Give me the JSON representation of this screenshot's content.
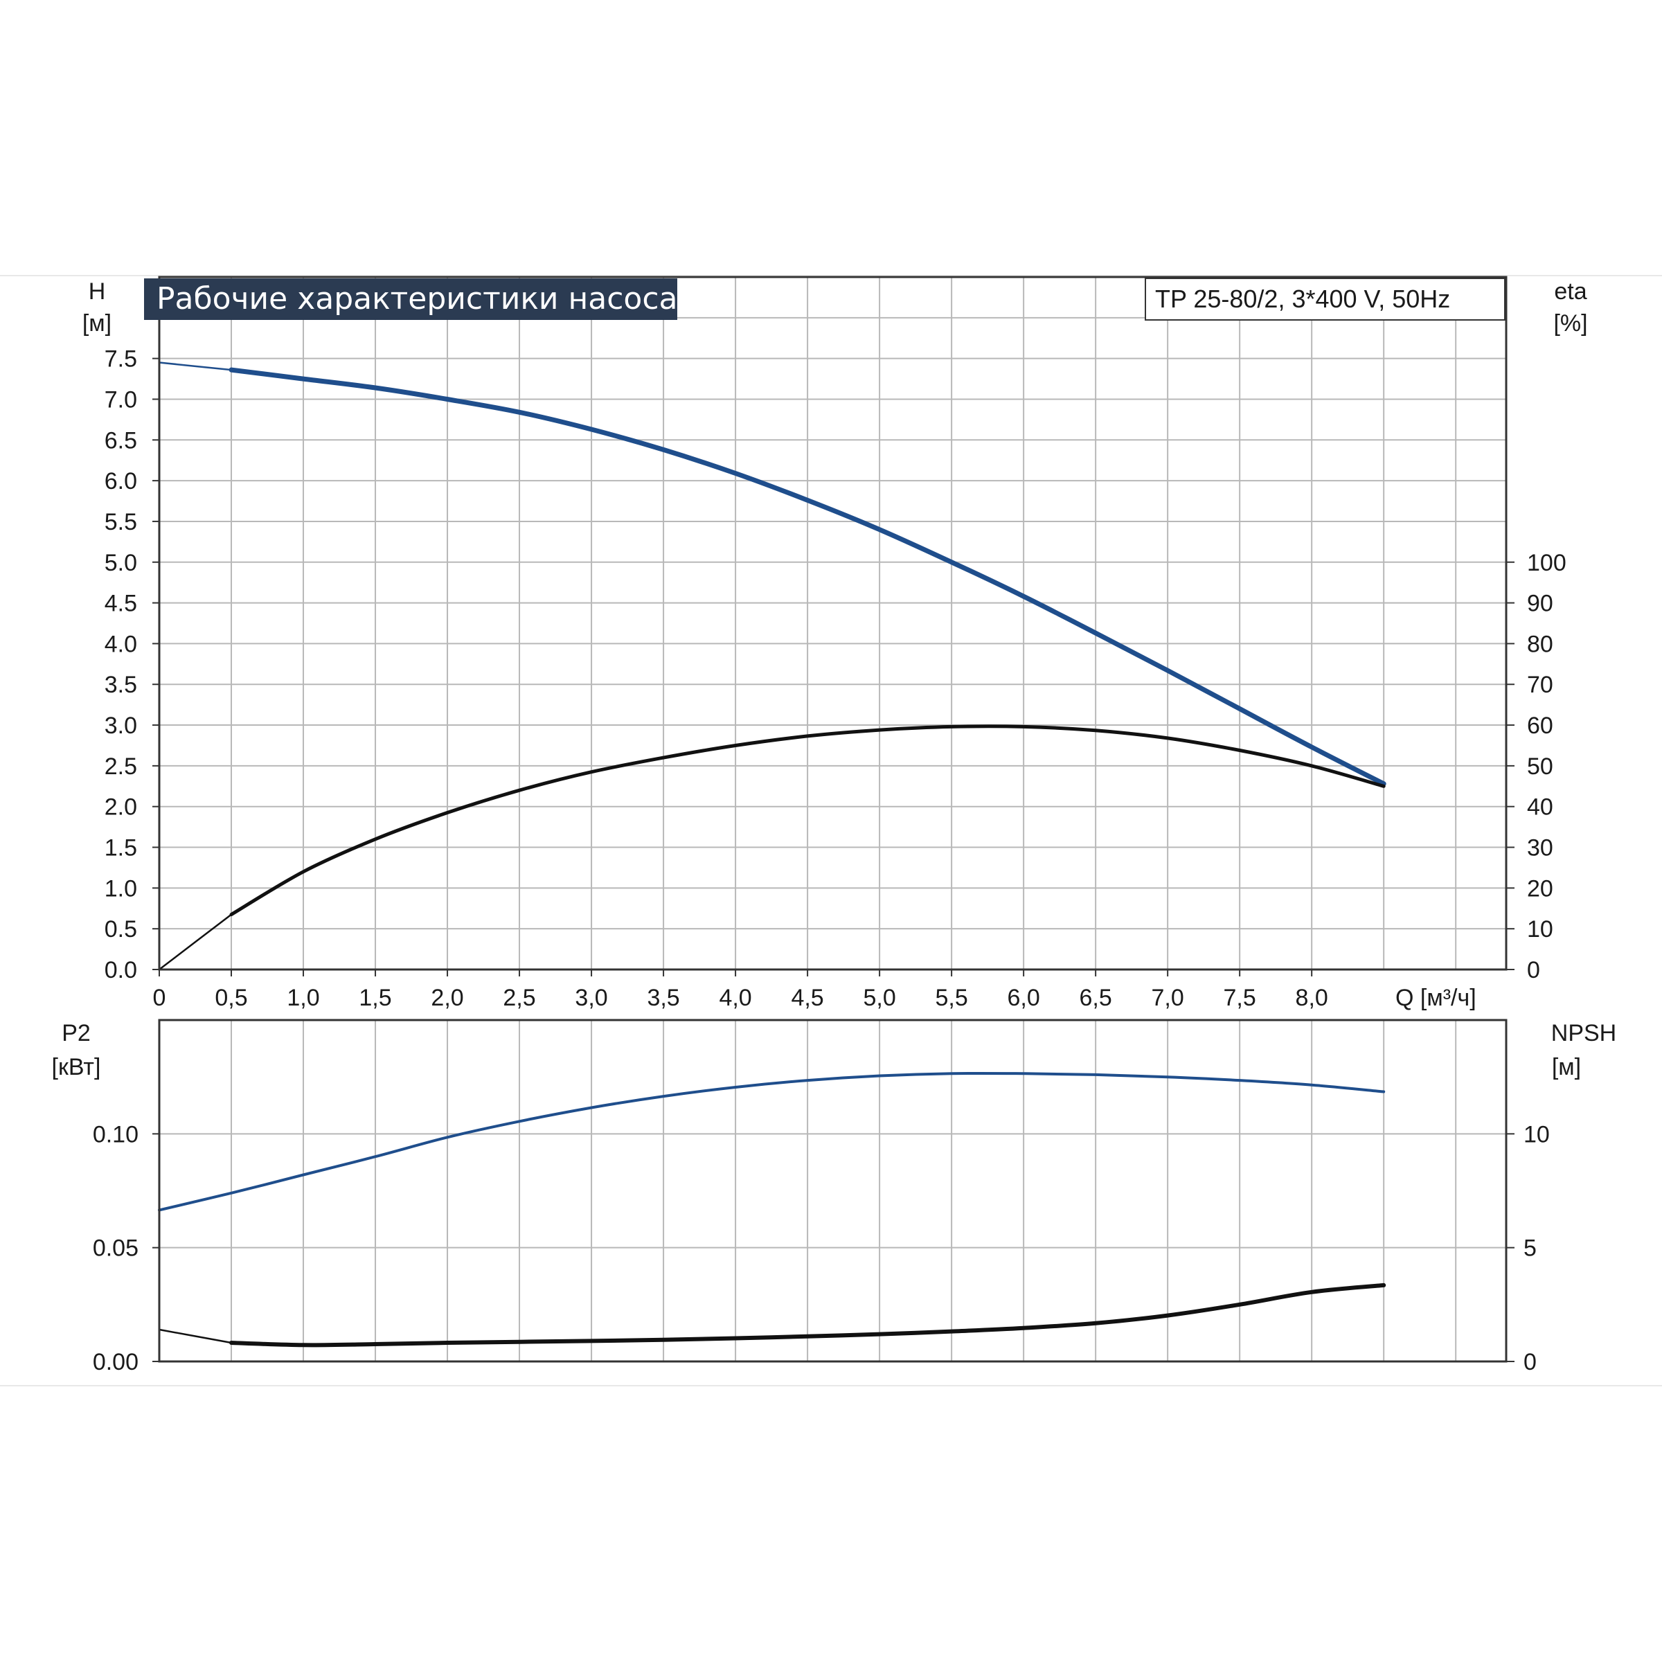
{
  "chart_data": [
    {
      "type": "line",
      "title": "Рабочие характеристики насоса",
      "subtitle": "TP 25-80/2, 3*400 V, 50Hz",
      "xlabel": "Q [м³/ч]",
      "ylabel": "H",
      "ylabel_unit": "[м]",
      "y2label": "eta",
      "y2label_unit": "[%]",
      "xlim": [
        0,
        9.35
      ],
      "ylim": [
        0,
        8.5
      ],
      "y2lim": [
        0,
        100
      ],
      "x_ticks": [
        "0",
        "0,5",
        "1,0",
        "1,5",
        "2,0",
        "2,5",
        "3,0",
        "3,5",
        "4,0",
        "4,5",
        "5,0",
        "5,5",
        "6,0",
        "6,5",
        "7,0",
        "7,5",
        "8,0"
      ],
      "y_ticks": [
        "0.0",
        "0.5",
        "1.0",
        "1.5",
        "2.0",
        "2.5",
        "3.0",
        "3.5",
        "4.0",
        "4.5",
        "5.0",
        "5.5",
        "6.0",
        "6.5",
        "7.0",
        "7.5"
      ],
      "y2_ticks": [
        "0",
        "10",
        "20",
        "30",
        "40",
        "50",
        "60",
        "70",
        "80",
        "90",
        "100"
      ],
      "grid": true,
      "series": [
        {
          "axis": "left",
          "color": "#1f4e8c",
          "x": [
            0,
            0.5,
            1.0,
            1.5,
            2.0,
            2.5,
            3.0,
            3.5,
            4.0,
            4.5,
            5.0,
            5.5,
            6.0,
            6.5,
            7.0,
            7.5,
            8.0,
            8.5
          ],
          "y": [
            7.45,
            7.36,
            7.25,
            7.14,
            7.0,
            6.84,
            6.63,
            6.38,
            6.09,
            5.76,
            5.4,
            5.0,
            4.58,
            4.13,
            3.67,
            3.2,
            2.73,
            2.28
          ]
        },
        {
          "axis": "right",
          "color": "#111111",
          "x": [
            0,
            0.5,
            1.0,
            1.5,
            2.0,
            2.5,
            3.0,
            3.5,
            4.0,
            4.5,
            5.0,
            5.5,
            6.0,
            6.5,
            7.0,
            7.5,
            8.0,
            8.5
          ],
          "y": [
            0,
            13.5,
            24,
            32,
            38.5,
            44,
            48.5,
            52,
            55,
            57.3,
            58.8,
            59.6,
            59.6,
            58.7,
            56.8,
            53.8,
            50,
            45
          ]
        }
      ]
    },
    {
      "type": "line",
      "xlim": [
        0,
        9.35
      ],
      "ylabel": "P2",
      "ylabel_unit": "[кВт]",
      "y2label": "NPSH",
      "y2label_unit": "[м]",
      "ylim": [
        0,
        0.15
      ],
      "y2lim": [
        0,
        15
      ],
      "y_ticks": [
        "0.00",
        "0.05",
        "0.10"
      ],
      "y2_ticks": [
        "0",
        "5",
        "10"
      ],
      "grid": true,
      "series": [
        {
          "axis": "left",
          "color": "#1f4e8c",
          "x": [
            0,
            0.5,
            1.0,
            1.5,
            2.0,
            2.5,
            3.0,
            3.5,
            4.0,
            4.5,
            5.0,
            5.5,
            6.0,
            6.5,
            7.0,
            7.5,
            8.0,
            8.5
          ],
          "y": [
            0.0665,
            0.074,
            0.082,
            0.09,
            0.0985,
            0.1055,
            0.1115,
            0.1165,
            0.1205,
            0.1235,
            0.1255,
            0.1265,
            0.1265,
            0.126,
            0.125,
            0.1235,
            0.1215,
            0.1185
          ]
        },
        {
          "axis": "right",
          "color": "#111111",
          "x": [
            0,
            0.5,
            1.0,
            1.5,
            2.0,
            2.5,
            3.0,
            3.5,
            4.0,
            4.5,
            5.0,
            5.5,
            6.0,
            6.5,
            7.0,
            7.5,
            8.0,
            8.5
          ],
          "y": [
            1.4,
            0.82,
            0.72,
            0.76,
            0.82,
            0.86,
            0.9,
            0.95,
            1.02,
            1.1,
            1.2,
            1.32,
            1.47,
            1.68,
            2.02,
            2.5,
            3.05,
            3.35
          ]
        }
      ]
    }
  ]
}
